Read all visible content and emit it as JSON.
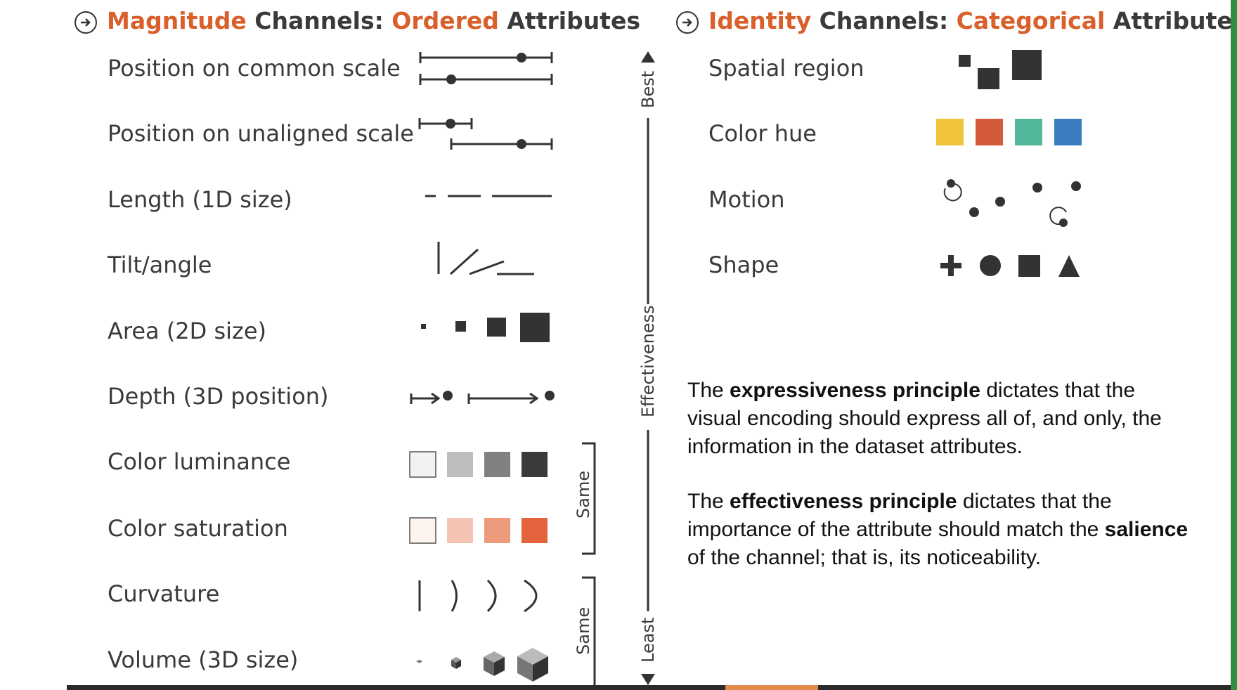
{
  "left_heading": {
    "part1": "Magnitude",
    "part2": " Channels: ",
    "part3": "Ordered",
    "part4": " Attributes"
  },
  "right_heading": {
    "part1": "Identity",
    "part2": " Channels: ",
    "part3": "Categorical",
    "part4": " Attributes"
  },
  "magnitude_channels": [
    "Position on common scale",
    "Position on unaligned scale",
    "Length (1D size)",
    "Tilt/angle",
    "Area (2D size)",
    "Depth (3D position)",
    "Color luminance",
    "Color saturation",
    "Curvature",
    "Volume (3D size)"
  ],
  "identity_channels": [
    "Spatial region",
    "Color hue",
    "Motion",
    "Shape"
  ],
  "effectiveness_axis": {
    "best": "Best",
    "middle": "Effectiveness",
    "least": "Least"
  },
  "same_labels": [
    "Same",
    "Same"
  ],
  "paragraph1": {
    "a": "The ",
    "b": "expressiveness principle",
    "c": " dictates that the visual encoding should express all of, and only, the information in the dataset attributes."
  },
  "paragraph2": {
    "a": "The ",
    "b": "effectiveness principle",
    "c": " dictates that the importance of the attribute should match the ",
    "d": "salience",
    "e": " of the channel; that is, its noticeability."
  },
  "colors": {
    "accent_orange": "#d95f2b",
    "hue_yellow": "#f0c53c",
    "hue_orange": "#d2593a",
    "hue_teal": "#52b79b",
    "hue_blue": "#3b7ec0",
    "luminance": [
      "#f2f2f2",
      "#bdbdbd",
      "#808080",
      "#3a3a3a"
    ],
    "saturation": [
      "#fdf3ef",
      "#f4c3b3",
      "#ec9a7a",
      "#e3633c"
    ]
  }
}
